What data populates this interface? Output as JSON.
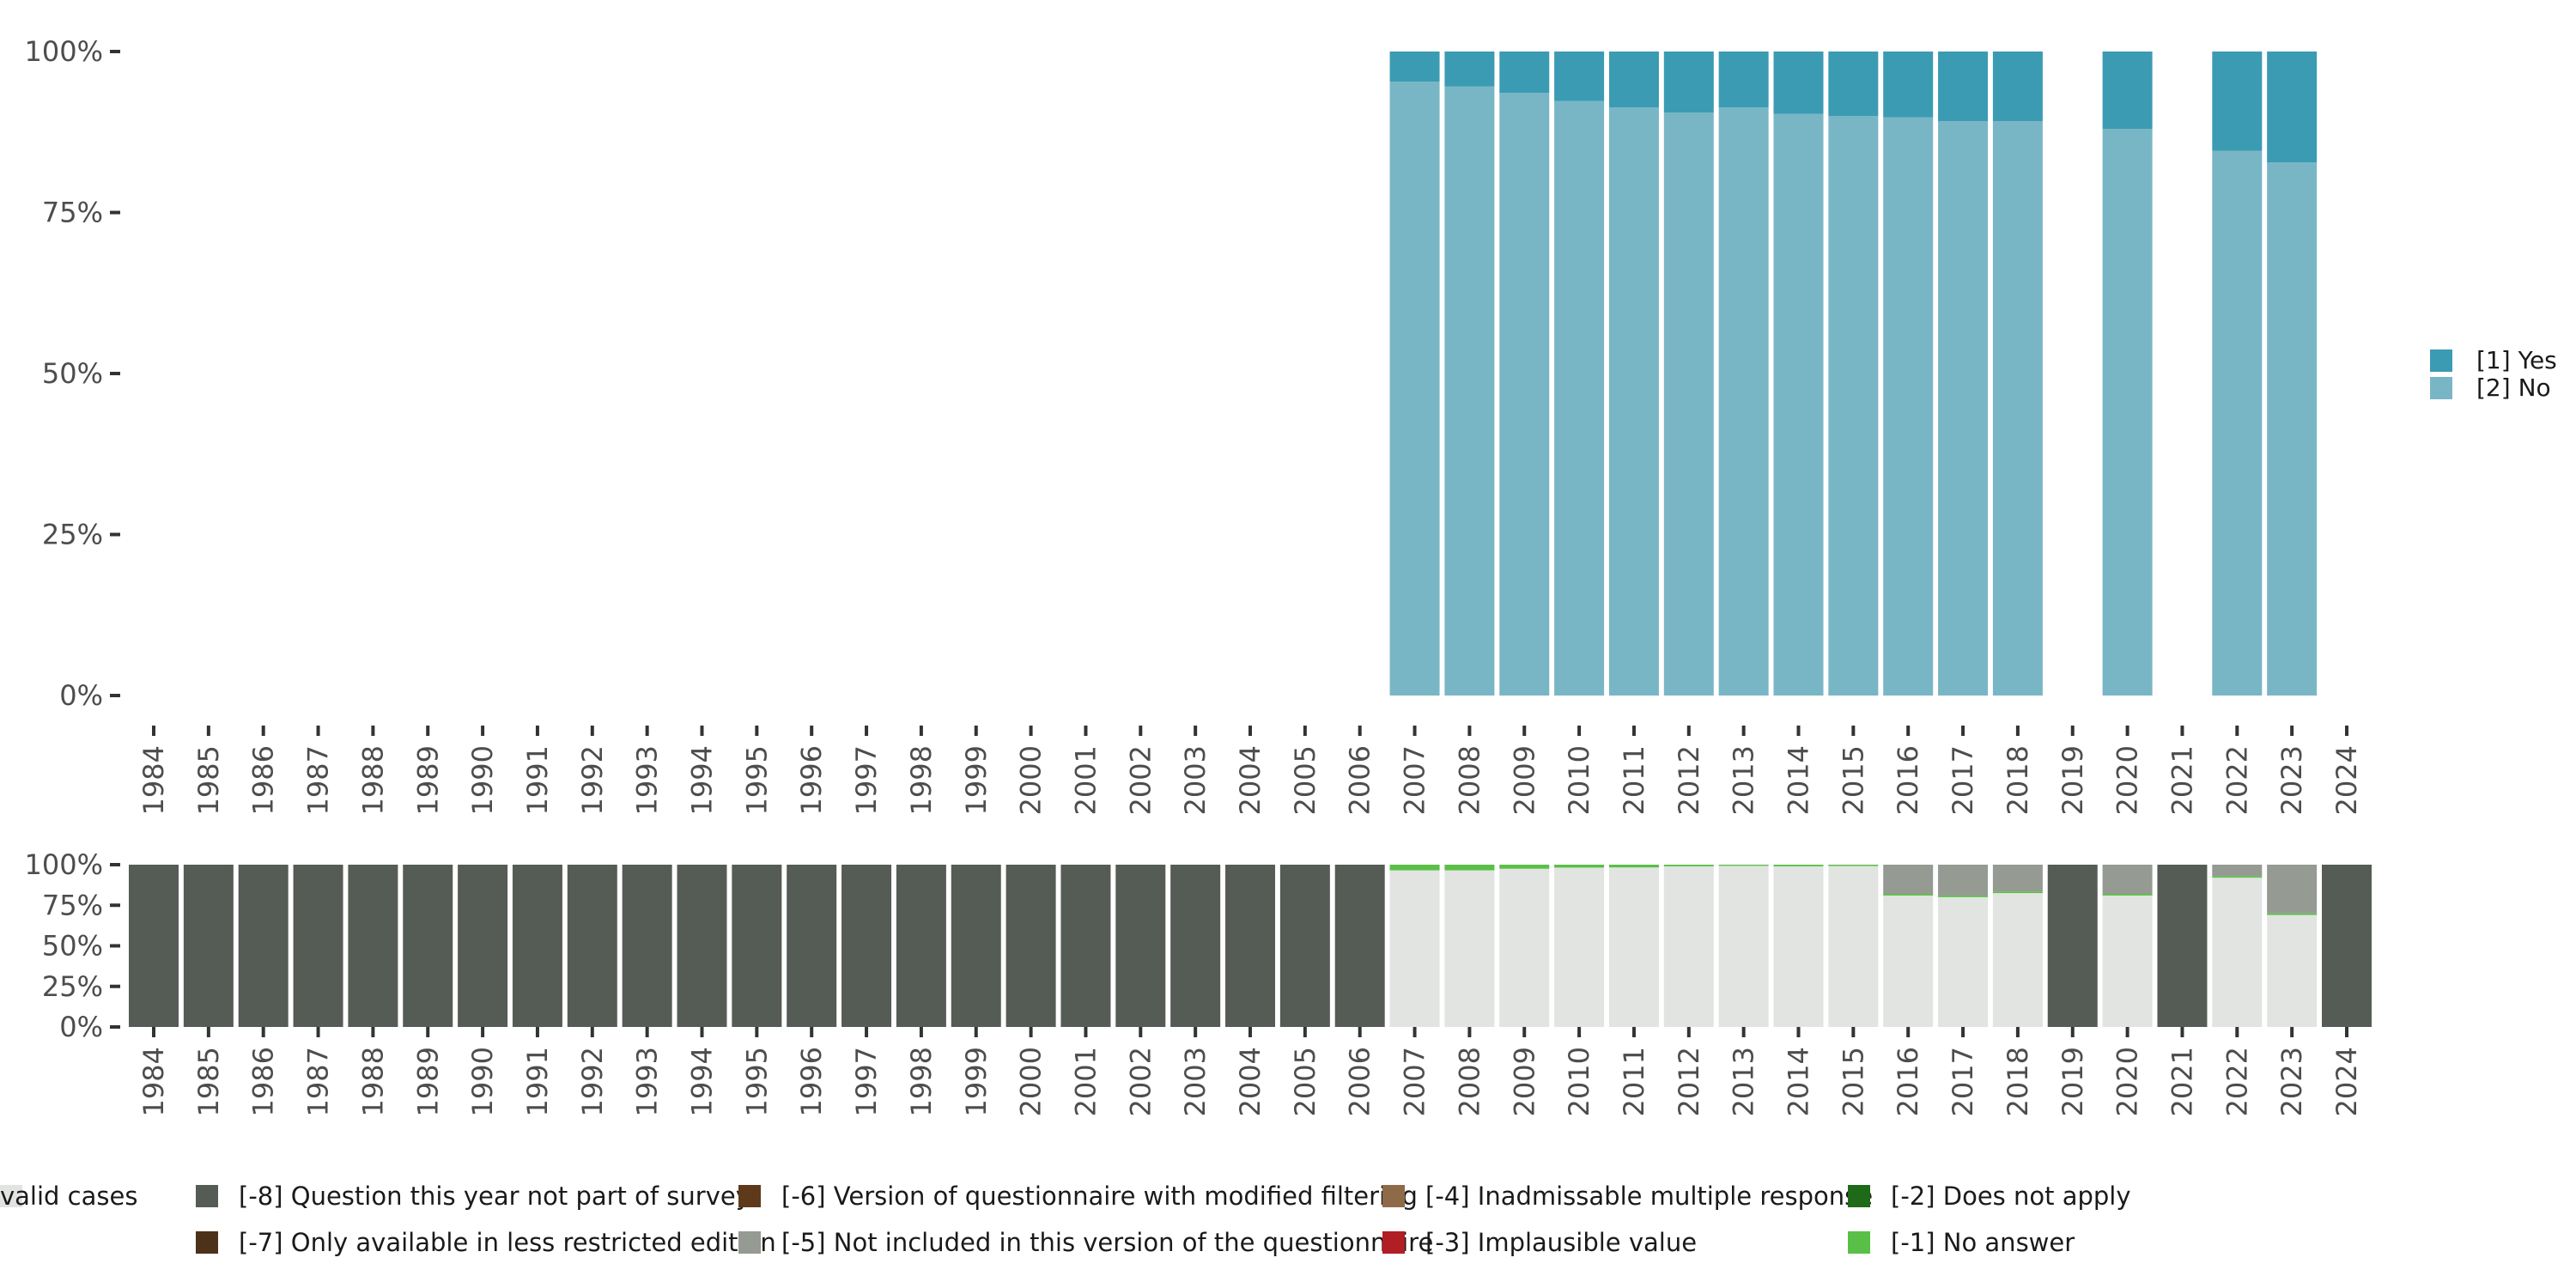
{
  "chart_data": [
    {
      "type": "bar",
      "stacked": true,
      "percent": true,
      "categories": [
        "1984",
        "1985",
        "1986",
        "1987",
        "1988",
        "1989",
        "1990",
        "1991",
        "1992",
        "1993",
        "1994",
        "1995",
        "1996",
        "1997",
        "1998",
        "1999",
        "2000",
        "2001",
        "2002",
        "2003",
        "2004",
        "2005",
        "2006",
        "2007",
        "2008",
        "2009",
        "2010",
        "2011",
        "2012",
        "2013",
        "2014",
        "2015",
        "2016",
        "2017",
        "2018",
        "2019",
        "2020",
        "2021",
        "2022",
        "2023",
        "2024"
      ],
      "y_ticks": [
        "0%",
        "25%",
        "50%",
        "75%",
        "100%"
      ],
      "ylim": [
        0,
        100
      ],
      "legend_position": "right",
      "series": [
        {
          "name": "[2] No",
          "color": "#79b6c5",
          "values": [
            null,
            null,
            null,
            null,
            null,
            null,
            null,
            null,
            null,
            null,
            null,
            null,
            null,
            null,
            null,
            null,
            null,
            null,
            null,
            null,
            null,
            null,
            null,
            95.3,
            94.6,
            93.6,
            92.3,
            91.3,
            90.5,
            91.3,
            90.3,
            90.0,
            89.8,
            89.2,
            89.2,
            null,
            88.0,
            null,
            84.6,
            82.8,
            null
          ]
        },
        {
          "name": "[1] Yes",
          "color": "#3b9bb3",
          "values": [
            null,
            null,
            null,
            null,
            null,
            null,
            null,
            null,
            null,
            null,
            null,
            null,
            null,
            null,
            null,
            null,
            null,
            null,
            null,
            null,
            null,
            null,
            null,
            4.7,
            5.4,
            6.4,
            7.7,
            8.7,
            9.5,
            8.7,
            9.7,
            10.0,
            10.2,
            10.8,
            10.8,
            null,
            12.0,
            null,
            15.4,
            17.2,
            null
          ]
        }
      ]
    },
    {
      "type": "bar",
      "stacked": true,
      "percent": true,
      "categories": [
        "1984",
        "1985",
        "1986",
        "1987",
        "1988",
        "1989",
        "1990",
        "1991",
        "1992",
        "1993",
        "1994",
        "1995",
        "1996",
        "1997",
        "1998",
        "1999",
        "2000",
        "2001",
        "2002",
        "2003",
        "2004",
        "2005",
        "2006",
        "2007",
        "2008",
        "2009",
        "2010",
        "2011",
        "2012",
        "2013",
        "2014",
        "2015",
        "2016",
        "2017",
        "2018",
        "2019",
        "2020",
        "2021",
        "2022",
        "2023",
        "2024"
      ],
      "y_ticks": [
        "0%",
        "25%",
        "50%",
        "75%",
        "100%"
      ],
      "ylim": [
        0,
        100
      ],
      "legend_position": "bottom",
      "series": [
        {
          "name": "valid cases",
          "color": "#e1e4e0",
          "values": [
            0,
            0,
            0,
            0,
            0,
            0,
            0,
            0,
            0,
            0,
            0,
            0,
            0,
            0,
            0,
            0,
            0,
            0,
            0,
            0,
            0,
            0,
            0,
            96.5,
            96.5,
            97.5,
            98.2,
            98.3,
            99.0,
            99.3,
            99.0,
            99.2,
            81.0,
            80.0,
            82.5,
            0,
            81.0,
            0,
            92.0,
            69.0,
            0
          ]
        },
        {
          "name": "[-1] No answer",
          "color": "#5abf47",
          "values": [
            0,
            0,
            0,
            0,
            0,
            0,
            0,
            0,
            0,
            0,
            0,
            0,
            0,
            0,
            0,
            0,
            0,
            0,
            0,
            0,
            0,
            0,
            0,
            3.5,
            3.5,
            2.5,
            1.8,
            1.7,
            1.0,
            0.7,
            1.0,
            0.8,
            1.0,
            1.0,
            1.0,
            0,
            1.0,
            0,
            1.0,
            1.0,
            0
          ]
        },
        {
          "name": "[-5] Not included in this version of the questionnaire",
          "color": "#959a92",
          "values": [
            0,
            0,
            0,
            0,
            0,
            0,
            0,
            0,
            0,
            0,
            0,
            0,
            0,
            0,
            0,
            0,
            0,
            0,
            0,
            0,
            0,
            0,
            0,
            0,
            0,
            0,
            0,
            0,
            0,
            0,
            0,
            0,
            18.0,
            19.0,
            16.5,
            0,
            18.0,
            0,
            7.0,
            30.0,
            0
          ]
        },
        {
          "name": "[-8] Question this year not part of survey",
          "color": "#555c55",
          "values": [
            100,
            100,
            100,
            100,
            100,
            100,
            100,
            100,
            100,
            100,
            100,
            100,
            100,
            100,
            100,
            100,
            100,
            100,
            100,
            100,
            100,
            100,
            100,
            0,
            0,
            0,
            0,
            0,
            0,
            0,
            0,
            0,
            0,
            0,
            0,
            100,
            0,
            100,
            0,
            0,
            100
          ]
        }
      ],
      "legend_items": [
        {
          "name": "[-8] Question this year not part of survey",
          "color": "#555c55"
        },
        {
          "name": "[-7] Only available in less restricted edition",
          "color": "#4b3219"
        },
        {
          "name": "[-6] Version of questionnaire with modified filtering",
          "color": "#5e3a1a"
        },
        {
          "name": "[-5] Not included in this version of the questionnaire",
          "color": "#959a92"
        },
        {
          "name": "[-4] Inadmissable multiple response",
          "color": "#8e6a48"
        },
        {
          "name": "[-3] Implausible value",
          "color": "#b11e23"
        },
        {
          "name": "[-2] Does not apply",
          "color": "#1f6a18"
        },
        {
          "name": "[-1] No answer",
          "color": "#5abf47"
        },
        {
          "name": "valid cases",
          "color": "#e1e4e0"
        }
      ]
    }
  ]
}
